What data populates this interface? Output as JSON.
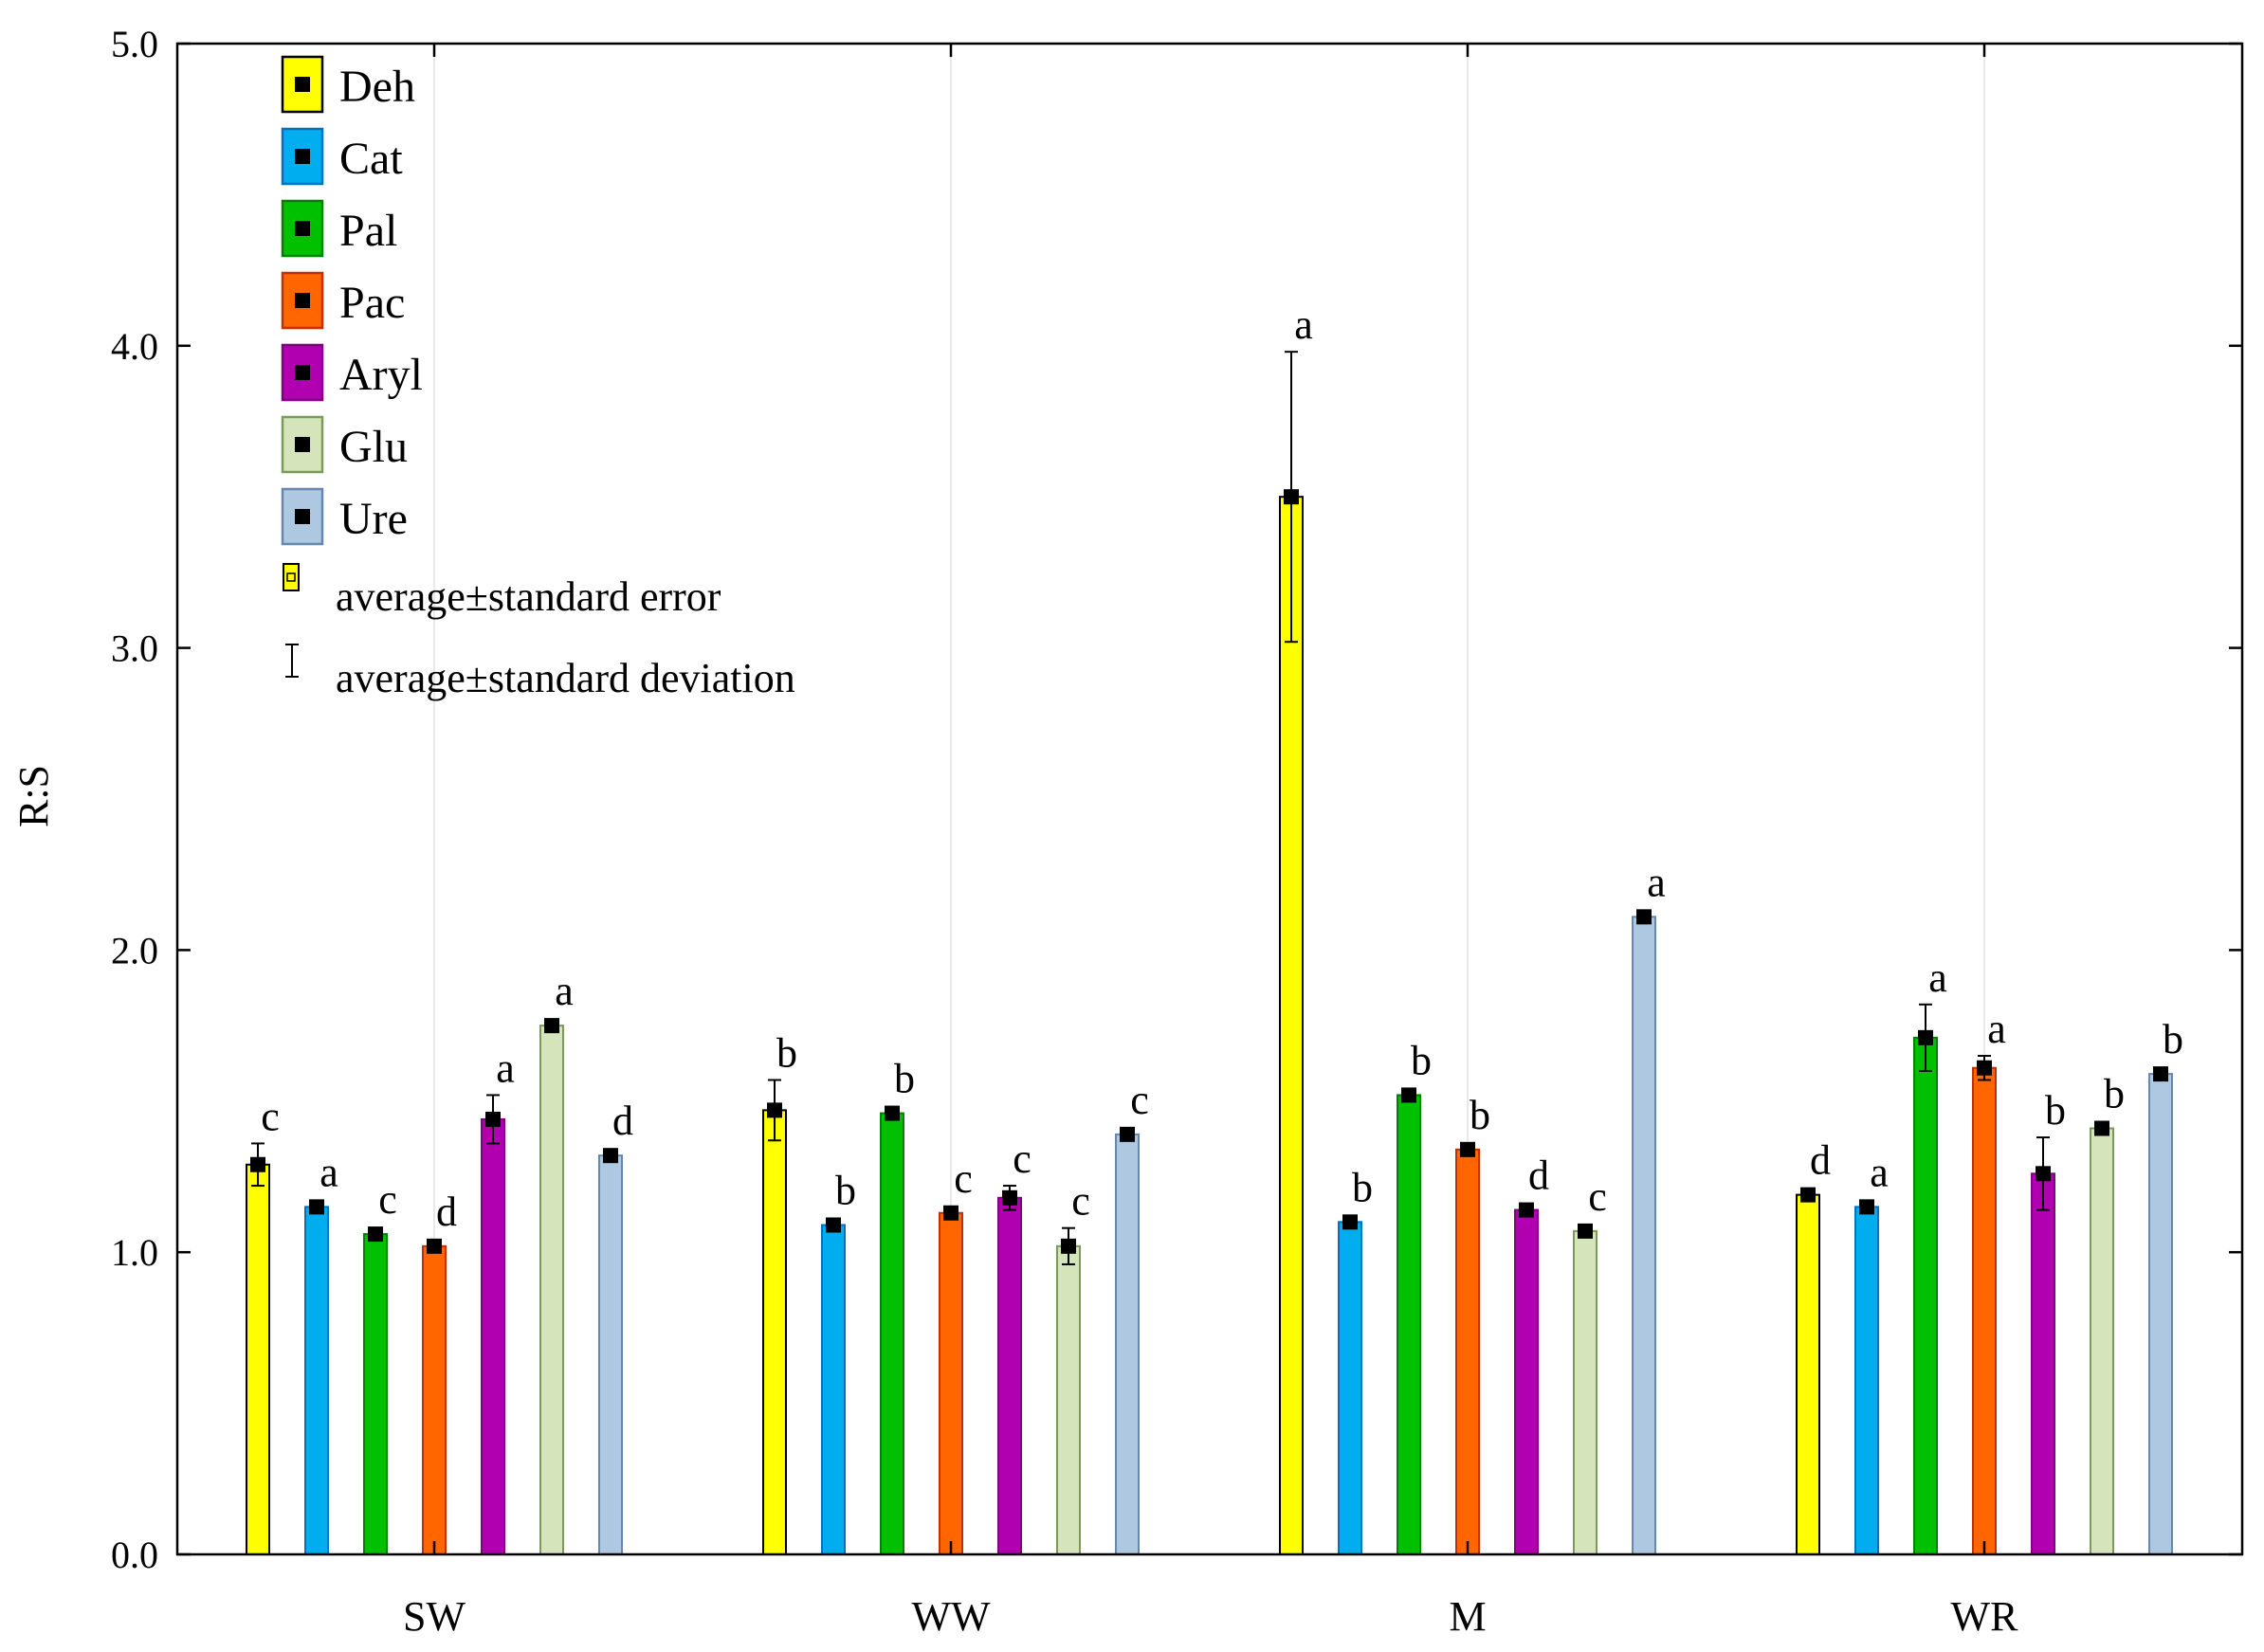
{
  "chart_data": {
    "type": "bar",
    "title": "",
    "xlabel": "",
    "ylabel": "R:S",
    "ylim": [
      0,
      5
    ],
    "yticks": [
      "0.0",
      "1.0",
      "2.0",
      "3.0",
      "4.0",
      "5.0"
    ],
    "grid": "vertical lines at category centers",
    "categories": [
      "SW",
      "WW",
      "M",
      "WR"
    ],
    "series": [
      {
        "name": "Deh",
        "color": "#ffff00",
        "stroke": "#000000",
        "values": [
          1.29,
          1.47,
          3.5,
          1.19
        ],
        "sd": [
          0.07,
          0.1,
          0.48,
          0.02
        ],
        "letters": [
          "c",
          "b",
          "a",
          "d"
        ]
      },
      {
        "name": "Cat",
        "color": "#00aeef",
        "stroke": "#0072bc",
        "values": [
          1.15,
          1.09,
          1.1,
          1.15
        ],
        "sd": [
          0.02,
          0.02,
          0.02,
          0.02
        ],
        "letters": [
          "a",
          "b",
          "b",
          "a"
        ]
      },
      {
        "name": "Pal",
        "color": "#00c000",
        "stroke": "#008000",
        "values": [
          1.06,
          1.46,
          1.52,
          1.71
        ],
        "sd": [
          0.02,
          0.02,
          0.02,
          0.11
        ],
        "letters": [
          "c",
          "b",
          "b",
          "a"
        ]
      },
      {
        "name": "Pac",
        "color": "#ff6600",
        "stroke": "#c03000",
        "values": [
          1.02,
          1.13,
          1.34,
          1.61
        ],
        "sd": [
          0.02,
          0.02,
          0.02,
          0.04
        ],
        "letters": [
          "d",
          "c",
          "b",
          "a"
        ]
      },
      {
        "name": "Aryl",
        "color": "#b000b0",
        "stroke": "#800080",
        "values": [
          1.44,
          1.18,
          1.14,
          1.26
        ],
        "sd": [
          0.08,
          0.04,
          0.02,
          0.12
        ],
        "letters": [
          "a",
          "c",
          "d",
          "b"
        ]
      },
      {
        "name": "Glu",
        "color": "#d6e4bc",
        "stroke": "#7a9a5a",
        "values": [
          1.75,
          1.02,
          1.07,
          1.41
        ],
        "sd": [
          0.02,
          0.06,
          0.02,
          0.02
        ],
        "letters": [
          "a",
          "c",
          "c",
          "b"
        ]
      },
      {
        "name": "Ure",
        "color": "#aec8e2",
        "stroke": "#6688aa",
        "values": [
          1.32,
          1.39,
          2.11,
          1.59
        ],
        "sd": [
          0.02,
          0.02,
          0.02,
          0.02
        ],
        "letters": [
          "d",
          "c",
          "a",
          "b"
        ]
      }
    ],
    "legend": {
      "placement": "top-left",
      "notes": [
        "average±standard error",
        "average±standard deviation"
      ]
    }
  }
}
